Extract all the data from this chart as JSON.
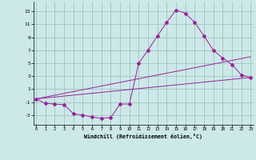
{
  "line1_x": [
    0,
    1,
    2,
    3,
    4,
    5,
    6,
    7,
    8,
    9,
    10,
    11,
    12,
    13,
    14,
    15,
    16,
    17,
    18,
    19,
    20,
    21,
    22,
    23
  ],
  "line1_y": [
    -0.5,
    -1.2,
    -1.3,
    -1.4,
    -2.8,
    -3.0,
    -3.3,
    -3.5,
    -3.4,
    -1.3,
    -1.3,
    5.0,
    7.0,
    9.2,
    11.3,
    13.2,
    12.7,
    11.3,
    9.2,
    7.0,
    5.8,
    4.8,
    3.2,
    2.8
  ],
  "line2_x": [
    0,
    23
  ],
  "line2_y": [
    -0.5,
    6.0
  ],
  "line3_x": [
    0,
    23
  ],
  "line3_y": [
    -0.5,
    2.8
  ],
  "line_color": "#992299",
  "bg_color": "#cce8e8",
  "grid_color": "#99bbbb",
  "xlabel": "Windchill (Refroidissement éolien,°C)",
  "xticks": [
    0,
    1,
    2,
    3,
    4,
    5,
    6,
    7,
    8,
    9,
    10,
    11,
    12,
    13,
    14,
    15,
    16,
    17,
    18,
    19,
    20,
    21,
    22,
    23
  ],
  "yticks": [
    -3,
    -1,
    1,
    3,
    5,
    7,
    9,
    11,
    13
  ],
  "xlim": [
    -0.3,
    23.3
  ],
  "ylim": [
    -4.5,
    14.5
  ]
}
